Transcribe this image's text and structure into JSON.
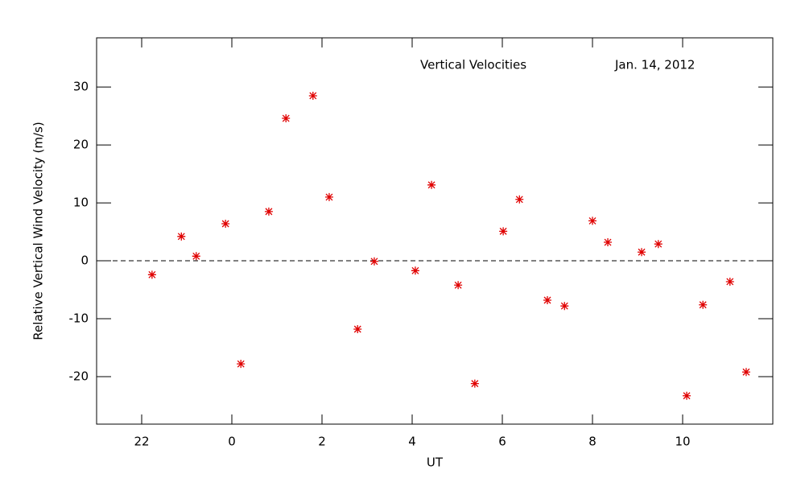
{
  "chart_data": {
    "type": "scatter",
    "title": "Vertical Velocities",
    "subtitle": "Jan. 14, 2012",
    "x_label": "UT",
    "y_label": "Relative Vertical Wind Velocity (m/s)",
    "color": "#e00000",
    "hline": 0,
    "xlim": [
      21,
      36
    ],
    "xticks": [
      22,
      {
        "value": 24,
        "label": "0"
      },
      {
        "value": 26,
        "label": "2"
      },
      {
        "value": 28,
        "label": "4"
      },
      {
        "value": 30,
        "label": "6"
      },
      {
        "value": 32,
        "label": "8"
      },
      {
        "value": 34,
        "label": "10"
      }
    ],
    "ylim": [
      -28.2,
      38.5
    ],
    "yticks": [
      -20,
      -10,
      0,
      10,
      20,
      30
    ],
    "x": [
      22.23,
      22.88,
      23.21,
      23.86,
      24.2,
      24.82,
      25.2,
      25.8,
      26.16,
      26.79,
      27.16,
      28.07,
      28.43,
      29.02,
      29.39,
      30.02,
      30.38,
      31.0,
      31.38,
      32.0,
      32.34,
      33.09,
      33.46,
      34.09,
      34.45,
      35.05,
      35.41
    ],
    "values": [
      -2.4,
      4.2,
      0.8,
      6.4,
      -17.8,
      8.5,
      24.6,
      28.5,
      11.0,
      -11.8,
      -0.1,
      -1.7,
      13.1,
      -4.2,
      -21.2,
      5.1,
      10.6,
      -6.8,
      -7.8,
      6.9,
      3.2,
      1.5,
      2.9,
      -23.3,
      -7.6,
      -3.6,
      -19.2
    ]
  }
}
